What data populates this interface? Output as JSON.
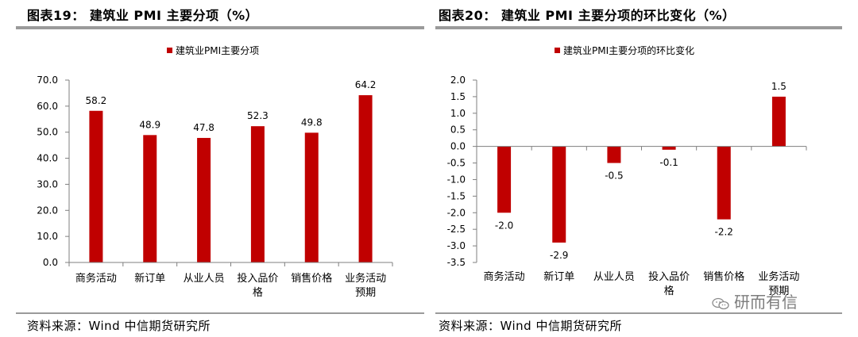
{
  "chart_data": [
    {
      "type": "bar",
      "figure_title": "图表19： 建筑业 PMI 主要分项（%）",
      "legend": "建筑业PMI主要分项",
      "categories": [
        [
          "商务活动"
        ],
        [
          "新订单"
        ],
        [
          "从业人员"
        ],
        [
          "投入品价",
          "格"
        ],
        [
          "销售价格"
        ],
        [
          "业务活动",
          "预期"
        ]
      ],
      "values": [
        58.2,
        48.9,
        47.8,
        52.3,
        49.8,
        64.2
      ],
      "value_labels": [
        "58.2",
        "48.9",
        "47.8",
        "52.3",
        "49.8",
        "64.2"
      ],
      "ylim": [
        0,
        70
      ],
      "yticks": [
        0,
        10,
        20,
        30,
        40,
        50,
        60,
        70
      ],
      "ytick_labels": [
        "0.0",
        "10.0",
        "20.0",
        "30.0",
        "40.0",
        "50.0",
        "60.0",
        "70.0"
      ],
      "source": "资料来源：Wind 中信期货研究所",
      "color": "#c00000"
    },
    {
      "type": "bar",
      "figure_title": "图表20： 建筑业 PMI 主要分项的环比变化（%）",
      "legend": "建筑业PMI主要分项的环比变化",
      "categories": [
        [
          "商务活动"
        ],
        [
          "新订单"
        ],
        [
          "从业人员"
        ],
        [
          "投入品价",
          "格"
        ],
        [
          "销售价格"
        ],
        [
          "业务活动",
          "预期"
        ]
      ],
      "values": [
        -2.0,
        -2.9,
        -0.5,
        -0.1,
        -2.2,
        1.5
      ],
      "value_labels": [
        "-2.0",
        "-2.9",
        "-0.5",
        "-0.1",
        "-2.2",
        "1.5"
      ],
      "ylim": [
        -3.5,
        2.0
      ],
      "yticks": [
        2.0,
        1.5,
        1.0,
        0.5,
        0.0,
        -0.5,
        -1.0,
        -1.5,
        -2.0,
        -2.5,
        -3.0,
        -3.5
      ],
      "ytick_labels": [
        "2.0",
        "1.5",
        "1.0",
        "0.5",
        "0.0",
        "-0.5",
        "-1.0",
        "-1.5",
        "-2.0",
        "-2.5",
        "-3.0",
        "-3.5"
      ],
      "source": "资料来源：Wind 中信期货研究所",
      "color": "#c00000"
    }
  ],
  "watermark": "研而有信"
}
